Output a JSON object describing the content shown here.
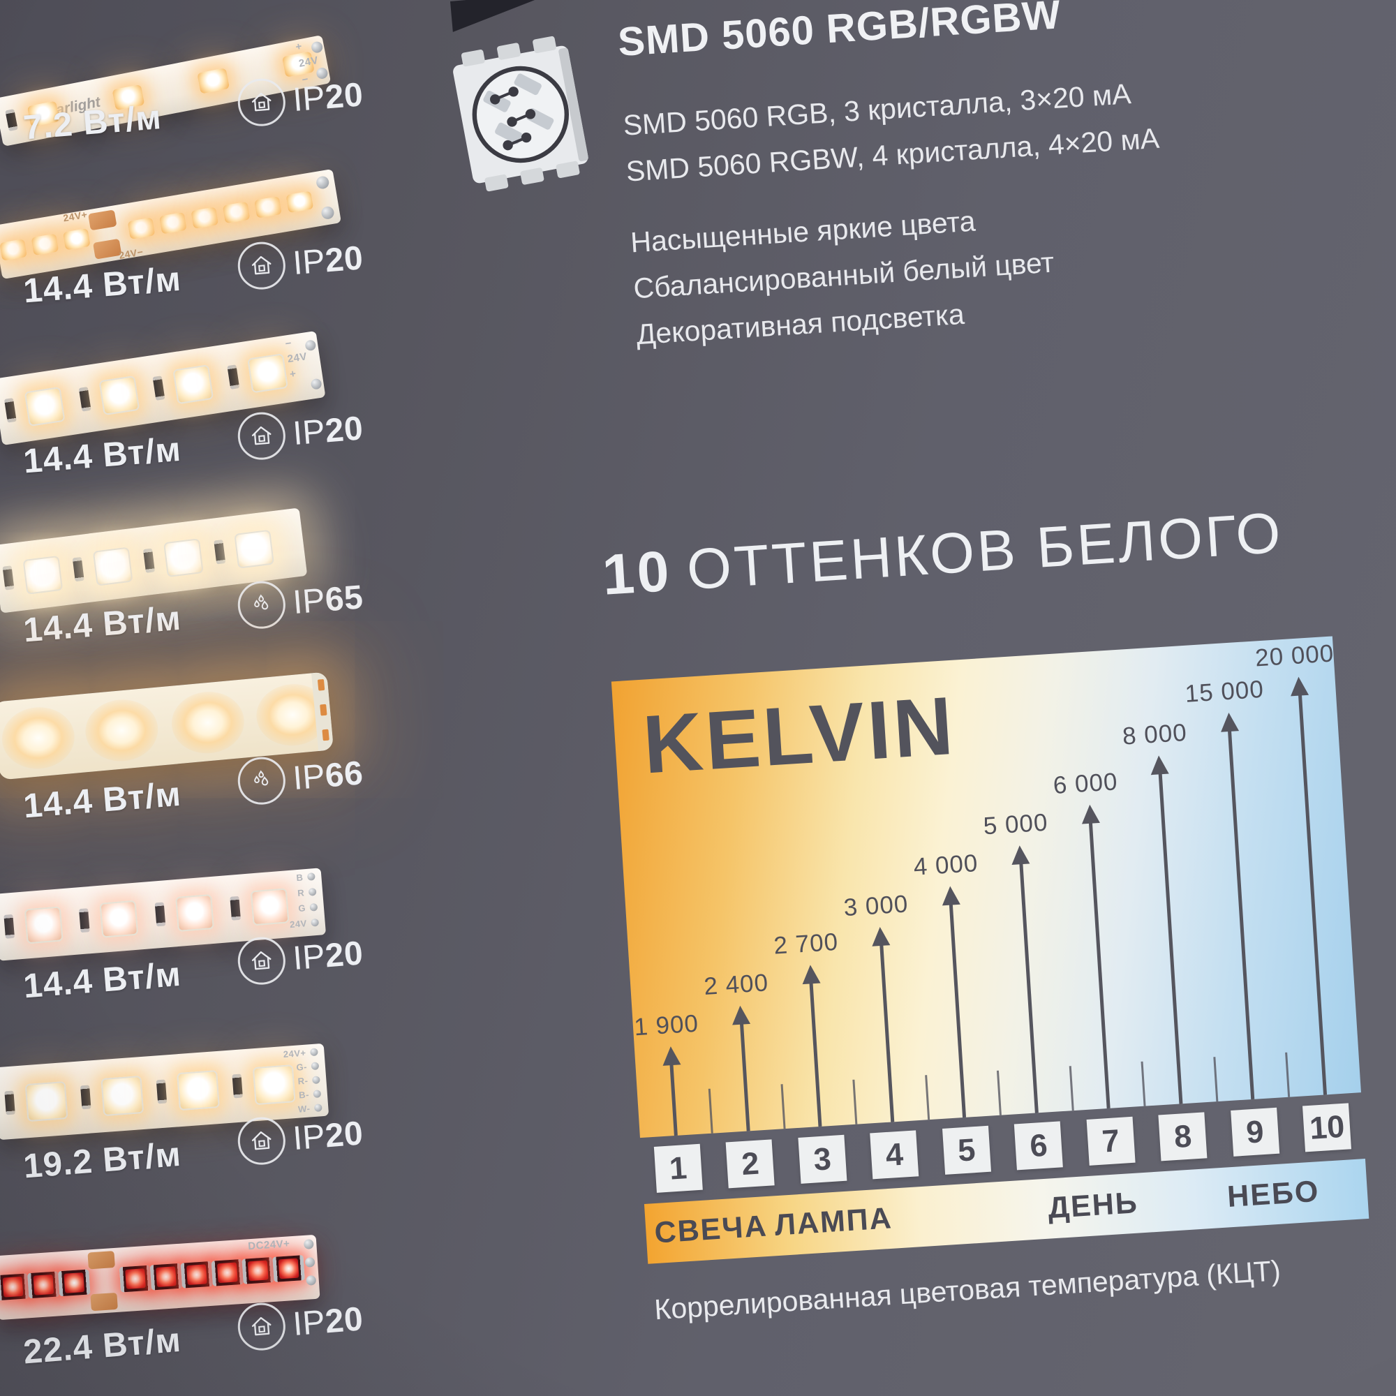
{
  "display": {
    "strips": [
      {
        "power": "7.2 Вт/м",
        "ip": "IP20",
        "icon": "house-indoor",
        "type": "smd2835-sparse",
        "brand_marking": "arlight",
        "edge_markings": [
          "+",
          "24V",
          "−"
        ]
      },
      {
        "power": "14.4 Вт/м",
        "ip": "IP20",
        "icon": "house-indoor",
        "type": "smd2835-dense",
        "edge_markings": [
          "24V+",
          "24V−"
        ]
      },
      {
        "power": "14.4 Вт/м",
        "ip": "IP20",
        "icon": "house-indoor",
        "type": "smd5050-warm",
        "edge_markings": [
          "−",
          "24V",
          "+"
        ]
      },
      {
        "power": "14.4 Вт/м",
        "ip": "IP65",
        "icon": "water-drops",
        "type": "smd5050-bright",
        "edge_markings": []
      },
      {
        "power": "14.4 Вт/м",
        "ip": "IP66",
        "icon": "water-drops",
        "type": "diffused-sleeve",
        "edge_markings": []
      },
      {
        "power": "14.4 Вт/м",
        "ip": "IP20",
        "icon": "house-indoor",
        "type": "smd5050-rgb",
        "pad_markings": [
          "B",
          "R",
          "G",
          "24V"
        ]
      },
      {
        "power": "19.2 Вт/м",
        "ip": "IP20",
        "icon": "house-indoor",
        "type": "smd5050-rgbw",
        "pad_markings": [
          "24V+",
          "G-",
          "R-",
          "B-",
          "W-"
        ]
      },
      {
        "power": "22.4 Вт/м",
        "ip": "IP20",
        "icon": "house-indoor",
        "type": "red-dense",
        "edge_markings": [
          "DC24V+"
        ]
      }
    ]
  },
  "product": {
    "title": "SMD 5060 RGB/RGBW",
    "spec_lines": [
      "SMD 5060 RGB, 3 кристалла, 3×20 мА",
      "SMD 5060 RGBW, 4 кристалла, 4×20 мА"
    ],
    "feature_lines": [
      "Насыщенные яркие цвета",
      "Сбалансированный белый цвет",
      "Декоративная подсветка"
    ]
  },
  "section": {
    "number": "10",
    "title": "ОТТЕНКОВ БЕЛОГО"
  },
  "chart_data": {
    "type": "bar",
    "title": "KELVIN",
    "categories": [
      "1",
      "2",
      "3",
      "4",
      "5",
      "6",
      "7",
      "8",
      "9",
      "10"
    ],
    "values": [
      1900,
      2400,
      2700,
      3000,
      4000,
      5000,
      6000,
      8000,
      15000,
      20000
    ],
    "value_labels": [
      "1 900",
      "2 400",
      "2 700",
      "3 000",
      "4 000",
      "5 000",
      "6 000",
      "8 000",
      "15 000",
      "20 000"
    ],
    "zones": [
      {
        "label": "СВЕЧА"
      },
      {
        "label": "ЛАМПА"
      },
      {
        "label": "ДЕНЬ"
      },
      {
        "label": "НЕБО"
      }
    ],
    "caption": "Коррелированная цветовая температура (КЦТ)",
    "gradient_colors": [
      "#f1a231",
      "#f5c468",
      "#f9e5ac",
      "#fbf2d4",
      "#e2ecf2",
      "#a5d0ec"
    ],
    "arrow_color": "#55555e",
    "label_color": "#50505a",
    "legend_position": "none",
    "grid": false
  },
  "colors": {
    "background": "#5b5b64",
    "text_light": "#eef0f3",
    "text_dark": "#4c4c56",
    "led_warm_glow": "#ffd9a0",
    "led_red": "#d32020",
    "copper_pad": "#c97f46"
  }
}
